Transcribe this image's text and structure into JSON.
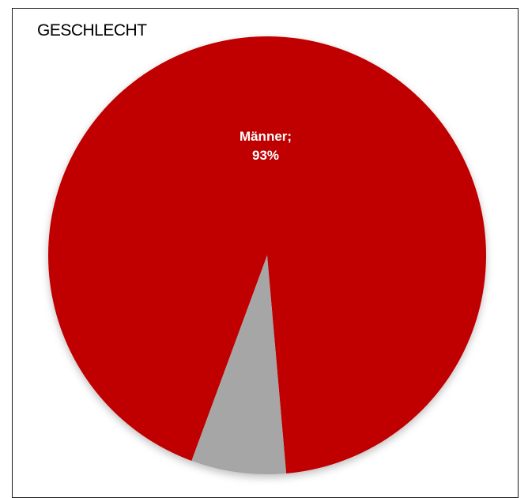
{
  "chart_data": {
    "type": "pie",
    "title": "GESCHLECHT",
    "slices": [
      {
        "label": "Männer",
        "value": 93,
        "color": "#c00000",
        "display_label": "Männer;",
        "display_value": "93%"
      },
      {
        "label": "",
        "value": 7,
        "color": "#a6a6a6"
      }
    ],
    "label_color": "#ffffff",
    "legend": "none"
  }
}
